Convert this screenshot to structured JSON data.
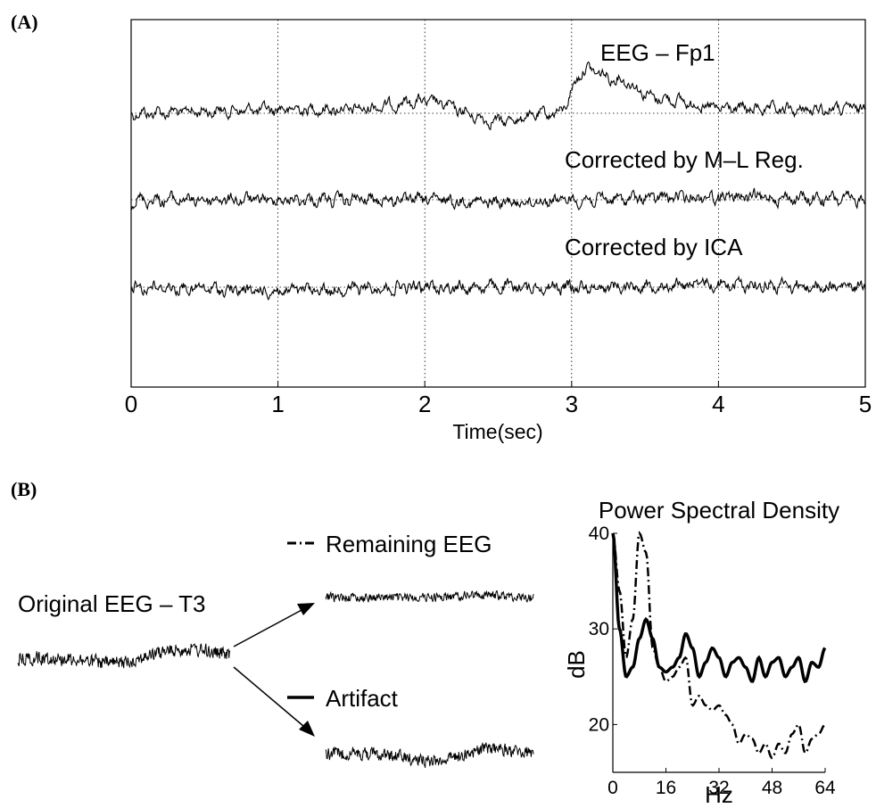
{
  "figure": {
    "panel_a_label": "(A)",
    "panel_b_label": "(B)"
  },
  "panel_a": {
    "trace_labels": [
      "EEG – Fp1",
      "Corrected by M–L Reg.",
      "Corrected by ICA"
    ],
    "xlabel": "Time(sec)"
  },
  "panel_b": {
    "original_label": "Original EEG – T3",
    "remaining_label": "Remaining EEG",
    "artifact_label": "Artifact"
  },
  "chart_data": [
    {
      "type": "line",
      "title": "",
      "xlabel": "Time(sec)",
      "ylabel": "",
      "xlim": [
        0,
        5
      ],
      "xticks": [
        0,
        1,
        2,
        3,
        4,
        5
      ],
      "grid": "vertical dotted",
      "series": [
        {
          "name": "EEG – Fp1",
          "x": [
            0,
            0.5,
            1,
            1.5,
            2,
            2.5,
            2.9,
            3.1,
            3.3,
            3.6,
            4,
            4.5,
            5
          ],
          "values": [
            0,
            0.2,
            0.4,
            0.4,
            1.2,
            -0.8,
            0,
            4.5,
            3.5,
            1.5,
            0.5,
            0.3,
            0.5
          ]
        },
        {
          "name": "Corrected by M–L Reg.",
          "x": [
            0,
            1,
            2,
            2.5,
            3,
            4,
            5
          ],
          "values": [
            0,
            0,
            0,
            -0.3,
            0,
            0.3,
            0
          ]
        },
        {
          "name": "Corrected by ICA",
          "x": [
            0,
            1,
            2,
            3,
            4,
            5
          ],
          "values": [
            0,
            -0.4,
            0,
            0,
            0.3,
            0
          ]
        }
      ]
    },
    {
      "type": "line",
      "title": "Power Spectral Density",
      "xlabel": "Hz",
      "ylabel": "dB",
      "xlim": [
        0,
        64
      ],
      "ylim": [
        15,
        40
      ],
      "xticks": [
        0,
        16,
        32,
        48,
        64
      ],
      "yticks": [
        20,
        30,
        40
      ],
      "series": [
        {
          "name": "Artifact",
          "style": "solid",
          "x": [
            0,
            2,
            4,
            6,
            8,
            10,
            12,
            14,
            16,
            18,
            20,
            22,
            24,
            26,
            28,
            30,
            32,
            34,
            36,
            38,
            40,
            42,
            44,
            46,
            48,
            50,
            52,
            54,
            56,
            58,
            60,
            62,
            64
          ],
          "values": [
            40,
            30,
            25,
            26,
            29,
            31,
            29,
            26,
            25.5,
            26,
            27,
            29.5,
            28,
            25,
            26.5,
            28,
            27,
            25,
            26.5,
            27,
            26,
            24.5,
            27,
            25,
            26.5,
            27,
            25,
            26,
            27,
            24.5,
            26.5,
            26,
            28
          ]
        },
        {
          "name": "Remaining EEG",
          "style": "dash-dot",
          "x": [
            0,
            2,
            4,
            6,
            8,
            10,
            12,
            14,
            16,
            18,
            20,
            22,
            24,
            26,
            28,
            30,
            32,
            34,
            36,
            38,
            40,
            42,
            44,
            46,
            48,
            50,
            52,
            54,
            56,
            58,
            60,
            62,
            64
          ],
          "values": [
            40,
            34,
            27,
            31,
            40,
            38,
            28,
            26,
            24.5,
            25,
            26,
            27,
            22,
            23,
            22,
            21.5,
            22,
            21,
            20,
            18,
            19,
            18.5,
            17,
            18,
            16.5,
            18,
            17,
            19,
            20,
            17,
            18.5,
            19,
            20
          ]
        }
      ]
    }
  ]
}
